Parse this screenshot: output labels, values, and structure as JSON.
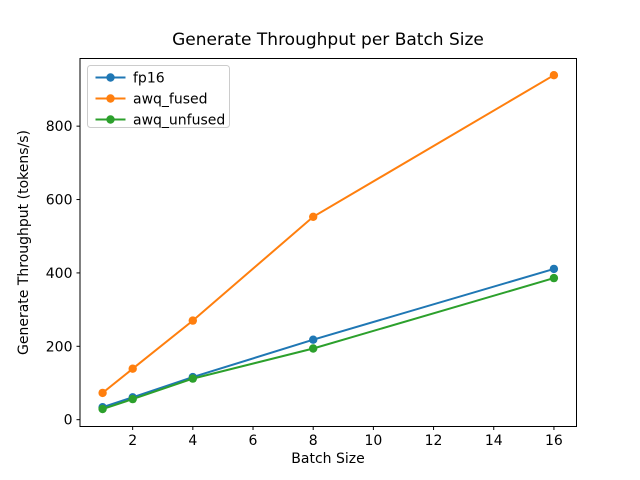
{
  "chart_data": {
    "type": "line",
    "title": "Generate Throughput per Batch Size",
    "xlabel": "Batch Size",
    "ylabel": "Generate Throughput (tokens/s)",
    "x": [
      1,
      2,
      4,
      8,
      16
    ],
    "series": [
      {
        "name": "fp16",
        "color": "#1f77b4",
        "values": [
          34,
          61,
          116,
          218,
          411
        ]
      },
      {
        "name": "awq_fused",
        "color": "#ff7f0e",
        "values": [
          73,
          139,
          270,
          553,
          939
        ]
      },
      {
        "name": "awq_unfused",
        "color": "#2ca02c",
        "values": [
          29,
          56,
          112,
          194,
          386
        ]
      }
    ],
    "x_ticks": [
      2,
      4,
      6,
      8,
      10,
      12,
      14,
      16
    ],
    "y_ticks": [
      0,
      200,
      400,
      600,
      800
    ],
    "xlim": [
      0.25,
      16.75
    ],
    "ylim": [
      -18.6,
      984.4
    ],
    "legend": {
      "position": "upper left",
      "entries": [
        "fp16",
        "awq_fused",
        "awq_unfused"
      ]
    },
    "grid": false,
    "background": "#ffffff",
    "axes_edge_color": "#000000",
    "legend_border_color": "#cccccc",
    "marker": "circle"
  }
}
